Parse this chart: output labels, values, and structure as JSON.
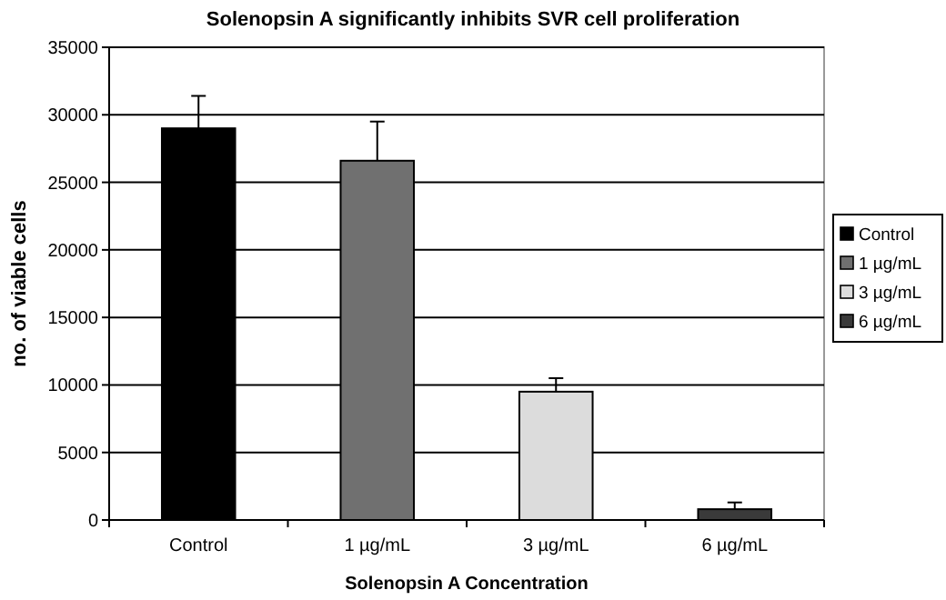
{
  "chart_data": {
    "type": "bar",
    "title": "Solenopsin A significantly inhibits SVR cell proliferation",
    "xlabel": "Solenopsin A Concentration",
    "ylabel": "no. of viable cells",
    "categories": [
      "Control",
      "1 µg/mL",
      "3 µg/mL",
      "6 µg/mL"
    ],
    "series": [
      {
        "name": "Control",
        "color": "#000000",
        "values": [
          29000,
          null,
          null,
          null
        ],
        "errors": [
          2400,
          null,
          null,
          null
        ]
      },
      {
        "name": "1 µg/mL",
        "color": "#707070",
        "values": [
          null,
          26600,
          null,
          null
        ],
        "errors": [
          null,
          2900,
          null,
          null
        ]
      },
      {
        "name": "3 µg/mL",
        "color": "#dcdcdc",
        "values": [
          null,
          null,
          9500,
          null
        ],
        "errors": [
          null,
          null,
          1000,
          null
        ]
      },
      {
        "name": "6 µg/mL",
        "color": "#3a3a3a",
        "values": [
          null,
          null,
          null,
          800
        ],
        "errors": [
          null,
          null,
          null,
          500
        ]
      }
    ],
    "ylim": [
      0,
      35000
    ],
    "yticks": [
      0,
      5000,
      10000,
      15000,
      20000,
      25000,
      30000,
      35000
    ],
    "grid": "y",
    "legend": "right"
  }
}
